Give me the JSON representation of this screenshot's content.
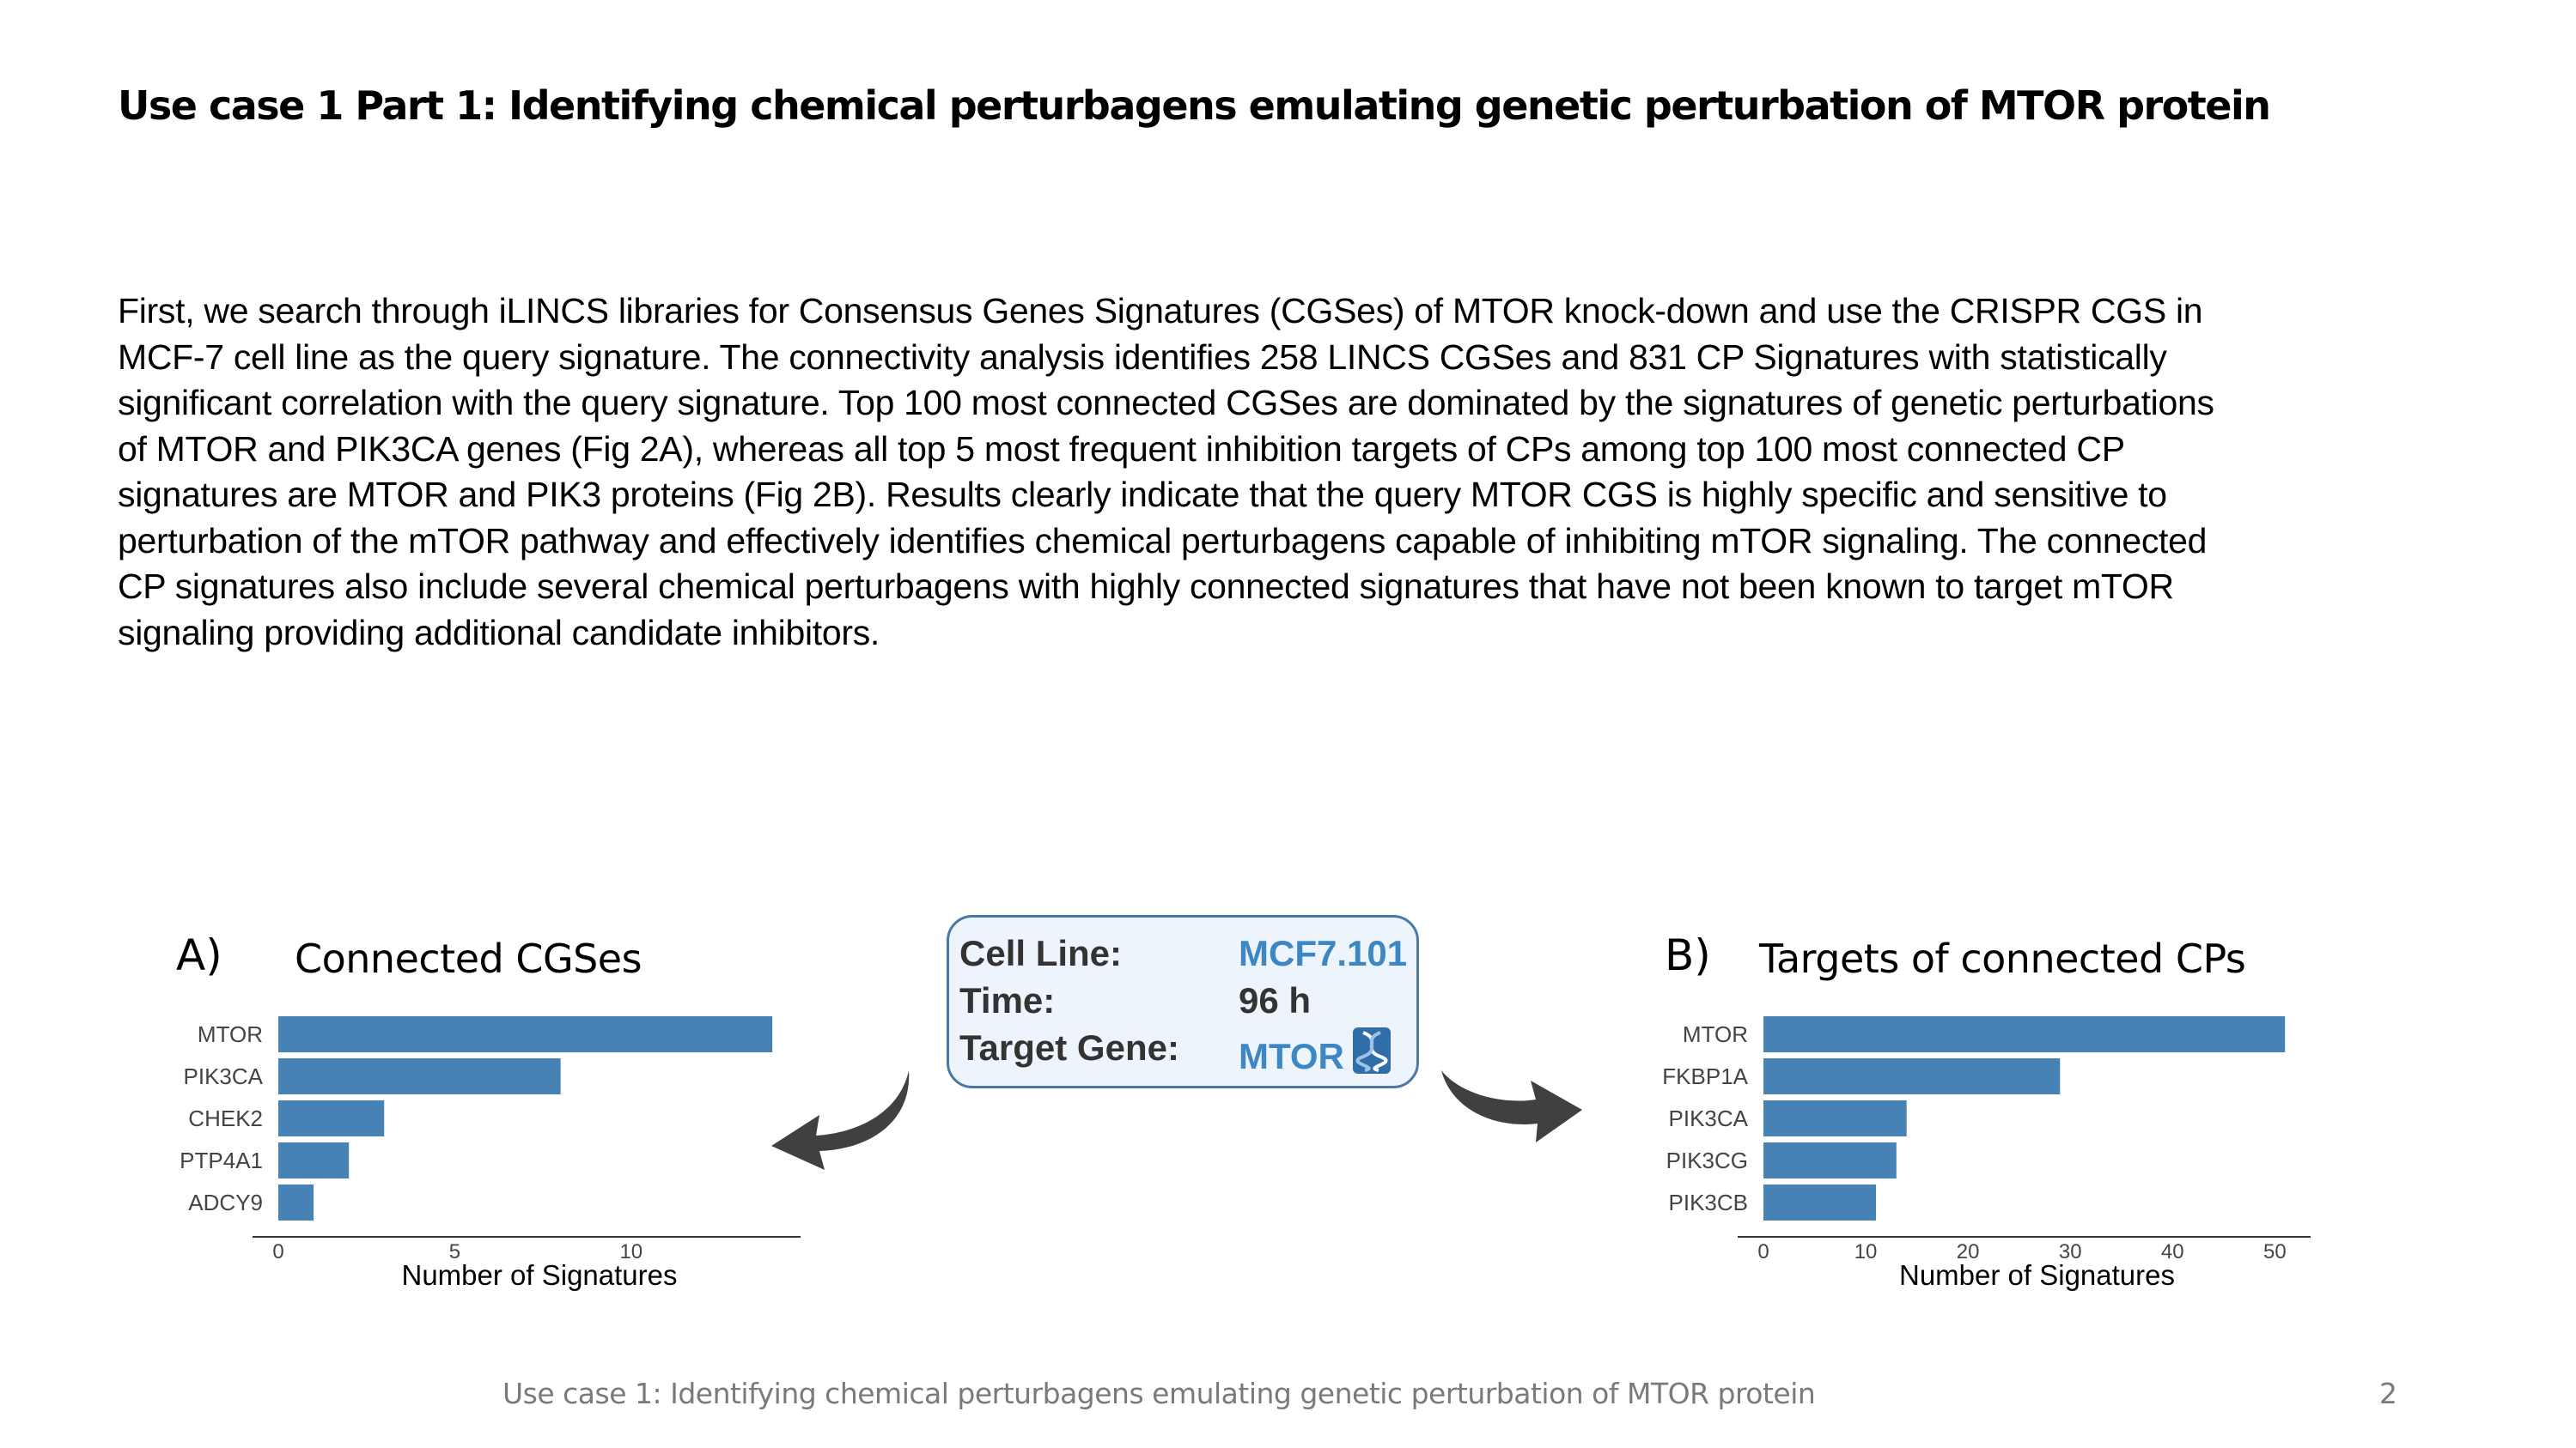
{
  "slide": {
    "title": "Use case 1 Part 1: Identifying chemical perturbagens emulating genetic perturbation of MTOR protein",
    "body_lines": [
      "First, we search through iLINCS libraries for Consensus Genes Signatures (CGSes) of MTOR knock-down and use the CRISPR CGS in",
      "MCF-7 cell line as the query signature. The connectivity analysis identifies 258 LINCS CGSes and 831 CP Signatures with statistically",
      "significant correlation with the query signature. Top 100 most connected CGSes are dominated by the signatures of genetic perturbations",
      "of MTOR and PIK3CA genes (Fig 2A), whereas all top 5 most frequent inhibition targets of CPs among top 100 most connected CP",
      "signatures are MTOR and PIK3 proteins (Fig 2B).  Results clearly indicate that the query MTOR CGS is highly specific and sensitive to",
      "perturbation of the mTOR pathway and effectively identifies chemical perturbagens capable of inhibiting mTOR signaling. The connected",
      "CP signatures also include several chemical perturbagens with highly connected signatures that have not been known to target mTOR",
      "signaling providing additional candidate inhibitors."
    ],
    "footer": "Use case 1: Identifying chemical perturbagens emulating genetic perturbation of MTOR protein",
    "page_number": "2"
  },
  "panel_a": {
    "letter": "A)",
    "title": "Connected CGSes"
  },
  "panel_b": {
    "letter": "B)",
    "title": "Targets of connected CPs"
  },
  "query_box": {
    "cell_line_label": "Cell Line:",
    "cell_line_value": "MCF7.101",
    "time_label": "Time:",
    "time_value": "96 h",
    "target_label": "Target Gene:",
    "target_value": "MTOR",
    "target_icon": "dna-icon"
  },
  "colors": {
    "bar": "#4682b4",
    "link": "#3d87c4",
    "box_border": "#4a78a6",
    "box_bg": "#eef4fb"
  },
  "chart_data": [
    {
      "type": "bar",
      "orientation": "horizontal",
      "categories": [
        "MTOR",
        "PIK3CA",
        "CHEK2",
        "PTP4A1",
        "ADCY9"
      ],
      "values": [
        14,
        8,
        3,
        2,
        1
      ],
      "xlabel": "Number of Signatures",
      "xticks": [
        0,
        5,
        10
      ],
      "xlim": [
        0,
        14.8
      ]
    },
    {
      "type": "bar",
      "orientation": "horizontal",
      "categories": [
        "MTOR",
        "FKBP1A",
        "PIK3CA",
        "PIK3CG",
        "PIK3CB"
      ],
      "values": [
        51,
        29,
        14,
        13,
        11
      ],
      "xlabel": "Number of Signatures",
      "xticks": [
        0,
        10,
        20,
        30,
        40,
        50
      ],
      "xlim": [
        0,
        53.5
      ]
    }
  ]
}
